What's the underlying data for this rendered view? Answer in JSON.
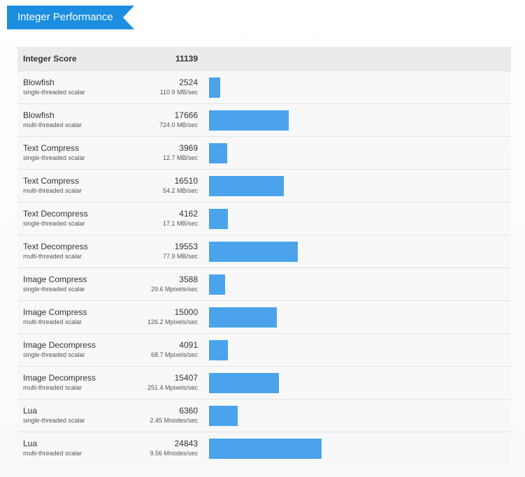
{
  "header": {
    "title": "Integer Performance"
  },
  "table": {
    "header": {
      "label": "Integer Score",
      "score": 11139
    },
    "rows": [
      {
        "name": "Blowfish",
        "mode": "single-threaded scalar",
        "score": 2524,
        "rate": "110.9 MB/sec"
      },
      {
        "name": "Blowfish",
        "mode": "multi-threaded scalar",
        "score": 17666,
        "rate": "724.0 MB/sec"
      },
      {
        "name": "Text Compress",
        "mode": "single-threaded scalar",
        "score": 3969,
        "rate": "12.7 MB/sec"
      },
      {
        "name": "Text Compress",
        "mode": "multi-threaded scalar",
        "score": 16510,
        "rate": "54.2 MB/sec"
      },
      {
        "name": "Text Decompress",
        "mode": "single-threaded scalar",
        "score": 4162,
        "rate": "17.1 MB/sec"
      },
      {
        "name": "Text Decompress",
        "mode": "multi-threaded scalar",
        "score": 19553,
        "rate": "77.9 MB/sec"
      },
      {
        "name": "Image Compress",
        "mode": "single-threaded scalar",
        "score": 3588,
        "rate": "29.6 Mpixels/sec"
      },
      {
        "name": "Image Compress",
        "mode": "multi-threaded scalar",
        "score": 15000,
        "rate": "126.2 Mpixels/sec"
      },
      {
        "name": "Image Decompress",
        "mode": "single-threaded scalar",
        "score": 4091,
        "rate": "68.7 Mpixels/sec"
      },
      {
        "name": "Image Decompress",
        "mode": "multi-threaded scalar",
        "score": 15407,
        "rate": "251.4 Mpixels/sec"
      },
      {
        "name": "Lua",
        "mode": "single-threaded scalar",
        "score": 6360,
        "rate": "2.45 Mnodes/sec"
      },
      {
        "name": "Lua",
        "mode": "multi-threaded scalar",
        "score": 24843,
        "rate": "9.56 Mnodes/sec"
      }
    ]
  }
}
